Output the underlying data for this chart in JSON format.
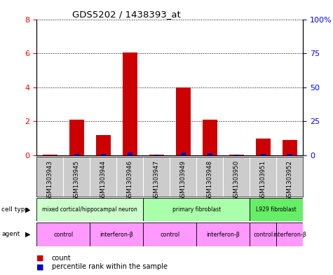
{
  "title": "GDS5202 / 1438393_at",
  "samples": [
    "GSM1303943",
    "GSM1303945",
    "GSM1303944",
    "GSM1303946",
    "GSM1303947",
    "GSM1303949",
    "GSM1303948",
    "GSM1303950",
    "GSM1303951",
    "GSM1303952"
  ],
  "count_values": [
    0.05,
    2.1,
    1.2,
    6.05,
    0.05,
    4.0,
    2.1,
    0.05,
    1.0,
    0.9
  ],
  "percentile_values": [
    0.12,
    1.3,
    0.85,
    2.25,
    0.45,
    2.0,
    1.4,
    0.45,
    1.1,
    0.85
  ],
  "bar_color_red": "#cc0000",
  "bar_color_blue": "#0000cc",
  "ylim_left": [
    0,
    8
  ],
  "ylim_right": [
    0,
    100
  ],
  "yticks_left": [
    0,
    2,
    4,
    6,
    8
  ],
  "yticks_right": [
    0,
    25,
    50,
    75,
    100
  ],
  "ytick_labels_right": [
    "0",
    "25",
    "50",
    "75",
    "100%"
  ],
  "cell_type_groups": [
    {
      "label": "mixed cortical/hippocampal neuron",
      "start": 0,
      "end": 4,
      "color": "#ccffcc"
    },
    {
      "label": "primary fibroblast",
      "start": 4,
      "end": 8,
      "color": "#aaffaa"
    },
    {
      "label": "L929 fibroblast",
      "start": 8,
      "end": 10,
      "color": "#66ee66"
    }
  ],
  "agent_groups": [
    {
      "label": "control",
      "start": 0,
      "end": 2,
      "color": "#ff99ff"
    },
    {
      "label": "interferon-β",
      "start": 2,
      "end": 4,
      "color": "#ff99ff"
    },
    {
      "label": "control",
      "start": 4,
      "end": 6,
      "color": "#ff99ff"
    },
    {
      "label": "interferon-β",
      "start": 6,
      "end": 8,
      "color": "#ff99ff"
    },
    {
      "label": "control",
      "start": 8,
      "end": 9,
      "color": "#ff99ff"
    },
    {
      "label": "interferon-β",
      "start": 9,
      "end": 10,
      "color": "#ff99ff"
    }
  ],
  "legend_count_label": "count",
  "legend_percentile_label": "percentile rank within the sample",
  "sample_bg_color": "#cccccc",
  "fig_width": 4.75,
  "fig_height": 3.93
}
